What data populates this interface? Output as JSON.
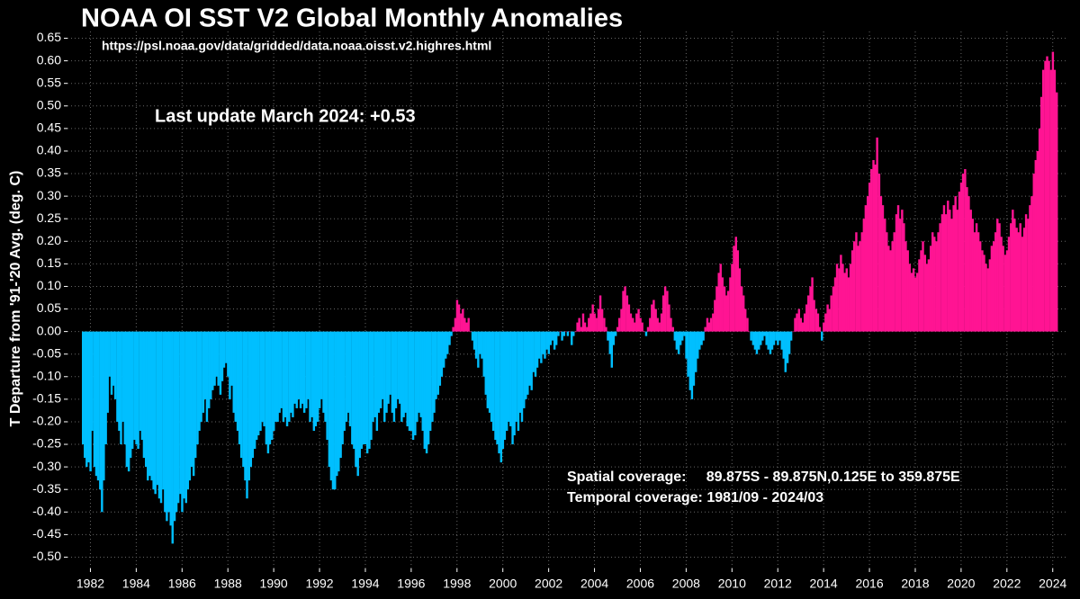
{
  "chart_data": {
    "type": "bar",
    "title": "NOAA OI SST V2 Global Monthly Anomalies",
    "subtitle": "https://psl.noaa.gov/data/gridded/data.noaa.oisst.v2.highres.html",
    "annotations": [
      "Last update March 2024: +0.53",
      "Spatial coverage:     89.875S - 89.875N,0.125E to 359.875E",
      "Temporal coverage: 1981/09 - 2024/03"
    ],
    "y_label": "T Departure from '91-'20 Avg. (deg. C)",
    "positive_color": "#ff1493",
    "negative_color": "#00bfff",
    "grid": true,
    "xlim": [
      1981,
      2024.6
    ],
    "xticks": [
      1982,
      1984,
      1986,
      1988,
      1990,
      1992,
      1994,
      1996,
      1998,
      2000,
      2002,
      2004,
      2006,
      2008,
      2010,
      2012,
      2014,
      2016,
      2018,
      2020,
      2022,
      2024
    ],
    "ylim": [
      -0.525,
      0.665
    ],
    "yticks": [
      {
        "value": -0.5,
        "label": "-0.50"
      },
      -0.45,
      {
        "value": -0.4,
        "label": "-0.40"
      },
      -0.35,
      {
        "value": -0.3,
        "label": "-0.30"
      },
      -0.25,
      {
        "value": -0.2,
        "label": "-0.20"
      },
      -0.15,
      {
        "value": -0.1,
        "label": "-0.10"
      },
      -0.05,
      {
        "value": 0,
        "label": "0.00"
      },
      0.05,
      {
        "value": 0.1,
        "label": "0.10"
      },
      0.15,
      {
        "value": 0.2,
        "label": "0.20"
      },
      0.25,
      {
        "value": 0.3,
        "label": "0.30"
      },
      0.35,
      {
        "value": 0.4,
        "label": "0.40"
      },
      0.45,
      {
        "value": 0.5,
        "label": "0.50"
      },
      0.55,
      {
        "value": 0.6,
        "label": "0.60"
      },
      0.65
    ],
    "x": [
      1981.67,
      1981.75,
      1981.83,
      1981.92,
      1982,
      1982.08,
      1982.17,
      1982.25,
      1982.33,
      1982.42,
      1982.5,
      1982.58,
      1982.67,
      1982.75,
      1982.83,
      1982.92,
      1983,
      1983.08,
      1983.17,
      1983.25,
      1983.33,
      1983.42,
      1983.5,
      1983.58,
      1983.67,
      1983.75,
      1983.83,
      1983.92,
      1984,
      1984.08,
      1984.17,
      1984.25,
      1984.33,
      1984.42,
      1984.5,
      1984.58,
      1984.67,
      1984.75,
      1984.83,
      1984.92,
      1985,
      1985.08,
      1985.17,
      1985.25,
      1985.33,
      1985.42,
      1985.5,
      1985.58,
      1985.67,
      1985.75,
      1985.83,
      1985.92,
      1986,
      1986.08,
      1986.17,
      1986.25,
      1986.33,
      1986.42,
      1986.5,
      1986.58,
      1986.67,
      1986.75,
      1986.83,
      1986.92,
      1987,
      1987.08,
      1987.17,
      1987.25,
      1987.33,
      1987.42,
      1987.5,
      1987.58,
      1987.67,
      1987.75,
      1987.83,
      1987.92,
      1988,
      1988.08,
      1988.17,
      1988.25,
      1988.33,
      1988.42,
      1988.5,
      1988.58,
      1988.67,
      1988.75,
      1988.83,
      1988.92,
      1989,
      1989.08,
      1989.17,
      1989.25,
      1989.33,
      1989.42,
      1989.5,
      1989.58,
      1989.67,
      1989.75,
      1989.83,
      1989.92,
      1990,
      1990.08,
      1990.17,
      1990.25,
      1990.33,
      1990.42,
      1990.5,
      1990.58,
      1990.67,
      1990.75,
      1990.83,
      1990.92,
      1991,
      1991.08,
      1991.17,
      1991.25,
      1991.33,
      1991.42,
      1991.5,
      1991.58,
      1991.67,
      1991.75,
      1991.83,
      1991.92,
      1992,
      1992.08,
      1992.17,
      1992.25,
      1992.33,
      1992.42,
      1992.5,
      1992.58,
      1992.67,
      1992.75,
      1992.83,
      1992.92,
      1993,
      1993.08,
      1993.17,
      1993.25,
      1993.33,
      1993.42,
      1993.5,
      1993.58,
      1993.67,
      1993.75,
      1993.83,
      1993.92,
      1994,
      1994.08,
      1994.17,
      1994.25,
      1994.33,
      1994.42,
      1994.5,
      1994.58,
      1994.67,
      1994.75,
      1994.83,
      1994.92,
      1995,
      1995.08,
      1995.17,
      1995.25,
      1995.33,
      1995.42,
      1995.5,
      1995.58,
      1995.67,
      1995.75,
      1995.83,
      1995.92,
      1996,
      1996.08,
      1996.17,
      1996.25,
      1996.33,
      1996.42,
      1996.5,
      1996.58,
      1996.67,
      1996.75,
      1996.83,
      1996.92,
      1997,
      1997.08,
      1997.17,
      1997.25,
      1997.33,
      1997.42,
      1997.5,
      1997.58,
      1997.67,
      1997.75,
      1997.83,
      1997.92,
      1998,
      1998.08,
      1998.17,
      1998.25,
      1998.33,
      1998.42,
      1998.5,
      1998.58,
      1998.67,
      1998.75,
      1998.83,
      1998.92,
      1999,
      1999.08,
      1999.17,
      1999.25,
      1999.33,
      1999.42,
      1999.5,
      1999.58,
      1999.67,
      1999.75,
      1999.83,
      1999.92,
      2000,
      2000.08,
      2000.17,
      2000.25,
      2000.33,
      2000.42,
      2000.5,
      2000.58,
      2000.67,
      2000.75,
      2000.83,
      2000.92,
      2001,
      2001.08,
      2001.17,
      2001.25,
      2001.33,
      2001.42,
      2001.5,
      2001.58,
      2001.67,
      2001.75,
      2001.83,
      2001.92,
      2002,
      2002.08,
      2002.17,
      2002.25,
      2002.33,
      2002.42,
      2002.5,
      2002.58,
      2002.67,
      2002.75,
      2002.83,
      2002.92,
      2003,
      2003.08,
      2003.17,
      2003.25,
      2003.33,
      2003.42,
      2003.5,
      2003.58,
      2003.67,
      2003.75,
      2003.83,
      2003.92,
      2004,
      2004.08,
      2004.17,
      2004.25,
      2004.33,
      2004.42,
      2004.5,
      2004.58,
      2004.67,
      2004.75,
      2004.83,
      2004.92,
      2005,
      2005.08,
      2005.17,
      2005.25,
      2005.33,
      2005.42,
      2005.5,
      2005.58,
      2005.67,
      2005.75,
      2005.83,
      2005.92,
      2006,
      2006.08,
      2006.17,
      2006.25,
      2006.33,
      2006.42,
      2006.5,
      2006.58,
      2006.67,
      2006.75,
      2006.83,
      2006.92,
      2007,
      2007.08,
      2007.17,
      2007.25,
      2007.33,
      2007.42,
      2007.5,
      2007.58,
      2007.67,
      2007.75,
      2007.83,
      2007.92,
      2008,
      2008.08,
      2008.17,
      2008.25,
      2008.33,
      2008.42,
      2008.5,
      2008.58,
      2008.67,
      2008.75,
      2008.83,
      2008.92,
      2009,
      2009.08,
      2009.17,
      2009.25,
      2009.33,
      2009.42,
      2009.5,
      2009.58,
      2009.67,
      2009.75,
      2009.83,
      2009.92,
      2010,
      2010.08,
      2010.17,
      2010.25,
      2010.33,
      2010.42,
      2010.5,
      2010.58,
      2010.67,
      2010.75,
      2010.83,
      2010.92,
      2011,
      2011.08,
      2011.17,
      2011.25,
      2011.33,
      2011.42,
      2011.5,
      2011.58,
      2011.67,
      2011.75,
      2011.83,
      2011.92,
      2012,
      2012.08,
      2012.17,
      2012.25,
      2012.33,
      2012.42,
      2012.5,
      2012.58,
      2012.67,
      2012.75,
      2012.83,
      2012.92,
      2013,
      2013.08,
      2013.17,
      2013.25,
      2013.33,
      2013.42,
      2013.5,
      2013.58,
      2013.67,
      2013.75,
      2013.83,
      2013.92,
      2014,
      2014.08,
      2014.17,
      2014.25,
      2014.33,
      2014.42,
      2014.5,
      2014.58,
      2014.67,
      2014.75,
      2014.83,
      2014.92,
      2015,
      2015.08,
      2015.17,
      2015.25,
      2015.33,
      2015.42,
      2015.5,
      2015.58,
      2015.67,
      2015.75,
      2015.83,
      2015.92,
      2016,
      2016.08,
      2016.17,
      2016.25,
      2016.33,
      2016.42,
      2016.5,
      2016.58,
      2016.67,
      2016.75,
      2016.83,
      2016.92,
      2017,
      2017.08,
      2017.17,
      2017.25,
      2017.33,
      2017.42,
      2017.5,
      2017.58,
      2017.67,
      2017.75,
      2017.83,
      2017.92,
      2018,
      2018.08,
      2018.17,
      2018.25,
      2018.33,
      2018.42,
      2018.5,
      2018.58,
      2018.67,
      2018.75,
      2018.83,
      2018.92,
      2019,
      2019.08,
      2019.17,
      2019.25,
      2019.33,
      2019.42,
      2019.5,
      2019.58,
      2019.67,
      2019.75,
      2019.83,
      2019.92,
      2020,
      2020.08,
      2020.17,
      2020.25,
      2020.33,
      2020.42,
      2020.5,
      2020.58,
      2020.67,
      2020.75,
      2020.83,
      2020.92,
      2021,
      2021.08,
      2021.17,
      2021.25,
      2021.33,
      2021.42,
      2021.5,
      2021.58,
      2021.67,
      2021.75,
      2021.83,
      2021.92,
      2022,
      2022.08,
      2022.17,
      2022.25,
      2022.33,
      2022.42,
      2022.5,
      2022.58,
      2022.67,
      2022.75,
      2022.83,
      2022.92,
      2023,
      2023.08,
      2023.17,
      2023.25,
      2023.33,
      2023.42,
      2023.5,
      2023.58,
      2023.67,
      2023.75,
      2023.83,
      2023.92,
      2024,
      2024.08,
      2024.17
    ],
    "values": [
      -0.25,
      -0.28,
      -0.3,
      -0.29,
      -0.31,
      -0.22,
      -0.3,
      -0.32,
      -0.33,
      -0.35,
      -0.4,
      -0.33,
      -0.25,
      -0.18,
      -0.1,
      -0.14,
      -0.12,
      -0.15,
      -0.2,
      -0.22,
      -0.25,
      -0.2,
      -0.25,
      -0.3,
      -0.31,
      -0.28,
      -0.26,
      -0.24,
      -0.25,
      -0.26,
      -0.22,
      -0.24,
      -0.28,
      -0.3,
      -0.33,
      -0.32,
      -0.33,
      -0.35,
      -0.36,
      -0.34,
      -0.37,
      -0.38,
      -0.35,
      -0.4,
      -0.42,
      -0.4,
      -0.43,
      -0.47,
      -0.42,
      -0.4,
      -0.38,
      -0.36,
      -0.4,
      -0.37,
      -0.38,
      -0.35,
      -0.33,
      -0.3,
      -0.32,
      -0.28,
      -0.25,
      -0.22,
      -0.2,
      -0.18,
      -0.15,
      -0.2,
      -0.17,
      -0.15,
      -0.13,
      -0.12,
      -0.1,
      -0.12,
      -0.14,
      -0.11,
      -0.08,
      -0.07,
      -0.1,
      -0.15,
      -0.12,
      -0.18,
      -0.2,
      -0.22,
      -0.25,
      -0.28,
      -0.3,
      -0.33,
      -0.37,
      -0.33,
      -0.3,
      -0.28,
      -0.26,
      -0.24,
      -0.23,
      -0.22,
      -0.2,
      -0.21,
      -0.25,
      -0.27,
      -0.25,
      -0.24,
      -0.22,
      -0.2,
      -0.2,
      -0.18,
      -0.17,
      -0.2,
      -0.19,
      -0.21,
      -0.2,
      -0.18,
      -0.19,
      -0.16,
      -0.17,
      -0.15,
      -0.17,
      -0.16,
      -0.18,
      -0.17,
      -0.15,
      -0.2,
      -0.19,
      -0.22,
      -0.21,
      -0.2,
      -0.17,
      -0.15,
      -0.18,
      -0.2,
      -0.24,
      -0.3,
      -0.33,
      -0.35,
      -0.35,
      -0.32,
      -0.31,
      -0.28,
      -0.25,
      -0.22,
      -0.2,
      -0.18,
      -0.21,
      -0.25,
      -0.26,
      -0.3,
      -0.32,
      -0.28,
      -0.26,
      -0.25,
      -0.25,
      -0.27,
      -0.26,
      -0.24,
      -0.2,
      -0.19,
      -0.22,
      -0.18,
      -0.17,
      -0.15,
      -0.2,
      -0.18,
      -0.16,
      -0.14,
      -0.18,
      -0.2,
      -0.17,
      -0.15,
      -0.16,
      -0.2,
      -0.19,
      -0.18,
      -0.21,
      -0.22,
      -0.22,
      -0.24,
      -0.23,
      -0.2,
      -0.18,
      -0.19,
      -0.22,
      -0.26,
      -0.27,
      -0.25,
      -0.22,
      -0.2,
      -0.18,
      -0.15,
      -0.14,
      -0.12,
      -0.1,
      -0.08,
      -0.06,
      -0.05,
      -0.03,
      -0.01,
      0.01,
      0.03,
      0.07,
      0.06,
      0.04,
      0.05,
      0.03,
      0.02,
      0.03,
      0.0,
      -0.02,
      -0.04,
      -0.06,
      -0.08,
      -0.05,
      -0.06,
      -0.1,
      -0.14,
      -0.17,
      -0.18,
      -0.2,
      -0.22,
      -0.24,
      -0.25,
      -0.27,
      -0.29,
      -0.26,
      -0.24,
      -0.22,
      -0.2,
      -0.21,
      -0.25,
      -0.23,
      -0.2,
      -0.22,
      -0.18,
      -0.2,
      -0.17,
      -0.15,
      -0.14,
      -0.12,
      -0.13,
      -0.09,
      -0.1,
      -0.08,
      -0.06,
      -0.07,
      -0.05,
      -0.06,
      -0.04,
      -0.05,
      -0.03,
      -0.02,
      -0.04,
      -0.03,
      -0.01,
      0.0,
      -0.02,
      -0.01,
      0.0,
      -0.01,
      0.0,
      -0.03,
      -0.01,
      0.0,
      0.02,
      0.03,
      0.01,
      0.04,
      0.02,
      0.01,
      0.03,
      0.04,
      0.06,
      0.04,
      0.03,
      0.05,
      0.08,
      0.05,
      0.03,
      0.01,
      -0.02,
      -0.05,
      -0.08,
      -0.03,
      -0.01,
      0.01,
      0.03,
      0.05,
      0.09,
      0.1,
      0.08,
      0.06,
      0.04,
      0.03,
      0.02,
      0.04,
      0.05,
      0.03,
      0.02,
      0.0,
      -0.01,
      0.01,
      0.03,
      0.06,
      0.07,
      0.05,
      0.03,
      0.02,
      0.04,
      0.08,
      0.1,
      0.09,
      0.06,
      0.03,
      0.01,
      -0.02,
      -0.04,
      -0.05,
      -0.03,
      -0.02,
      -0.01,
      -0.06,
      -0.1,
      -0.13,
      -0.15,
      -0.12,
      -0.09,
      -0.06,
      -0.04,
      -0.03,
      -0.02,
      0.01,
      0.03,
      0.02,
      0.03,
      0.04,
      0.07,
      0.1,
      0.13,
      0.15,
      0.12,
      0.1,
      0.08,
      0.09,
      0.12,
      0.15,
      0.19,
      0.21,
      0.18,
      0.14,
      0.1,
      0.08,
      0.05,
      0.03,
      0.0,
      -0.02,
      -0.03,
      -0.04,
      -0.05,
      -0.04,
      -0.03,
      -0.02,
      -0.01,
      -0.03,
      -0.04,
      -0.05,
      -0.04,
      -0.03,
      -0.02,
      -0.03,
      -0.02,
      -0.04,
      -0.06,
      -0.09,
      -0.07,
      -0.05,
      -0.02,
      0.0,
      0.03,
      0.04,
      0.05,
      0.03,
      0.02,
      0.04,
      0.06,
      0.08,
      0.1,
      0.12,
      0.07,
      0.05,
      0.04,
      0.01,
      -0.02,
      0.02,
      0.04,
      0.06,
      0.05,
      0.08,
      0.1,
      0.12,
      0.15,
      0.14,
      0.17,
      0.15,
      0.13,
      0.14,
      0.12,
      0.15,
      0.18,
      0.2,
      0.22,
      0.19,
      0.2,
      0.22,
      0.25,
      0.28,
      0.3,
      0.33,
      0.36,
      0.38,
      0.37,
      0.43,
      0.35,
      0.3,
      0.28,
      0.25,
      0.22,
      0.19,
      0.18,
      0.2,
      0.22,
      0.26,
      0.28,
      0.25,
      0.27,
      0.24,
      0.2,
      0.18,
      0.15,
      0.13,
      0.14,
      0.12,
      0.13,
      0.16,
      0.18,
      0.2,
      0.17,
      0.15,
      0.16,
      0.19,
      0.22,
      0.21,
      0.2,
      0.22,
      0.24,
      0.26,
      0.28,
      0.26,
      0.29,
      0.27,
      0.25,
      0.28,
      0.3,
      0.27,
      0.31,
      0.33,
      0.35,
      0.36,
      0.32,
      0.3,
      0.27,
      0.25,
      0.22,
      0.24,
      0.22,
      0.2,
      0.18,
      0.17,
      0.15,
      0.14,
      0.16,
      0.19,
      0.2,
      0.22,
      0.25,
      0.24,
      0.21,
      0.19,
      0.17,
      0.18,
      0.21,
      0.24,
      0.27,
      0.25,
      0.23,
      0.22,
      0.24,
      0.21,
      0.23,
      0.26,
      0.25,
      0.28,
      0.3,
      0.35,
      0.38,
      0.4,
      0.45,
      0.52,
      0.58,
      0.6,
      0.61,
      0.6,
      0.58,
      0.62,
      0.58,
      0.53
    ]
  }
}
